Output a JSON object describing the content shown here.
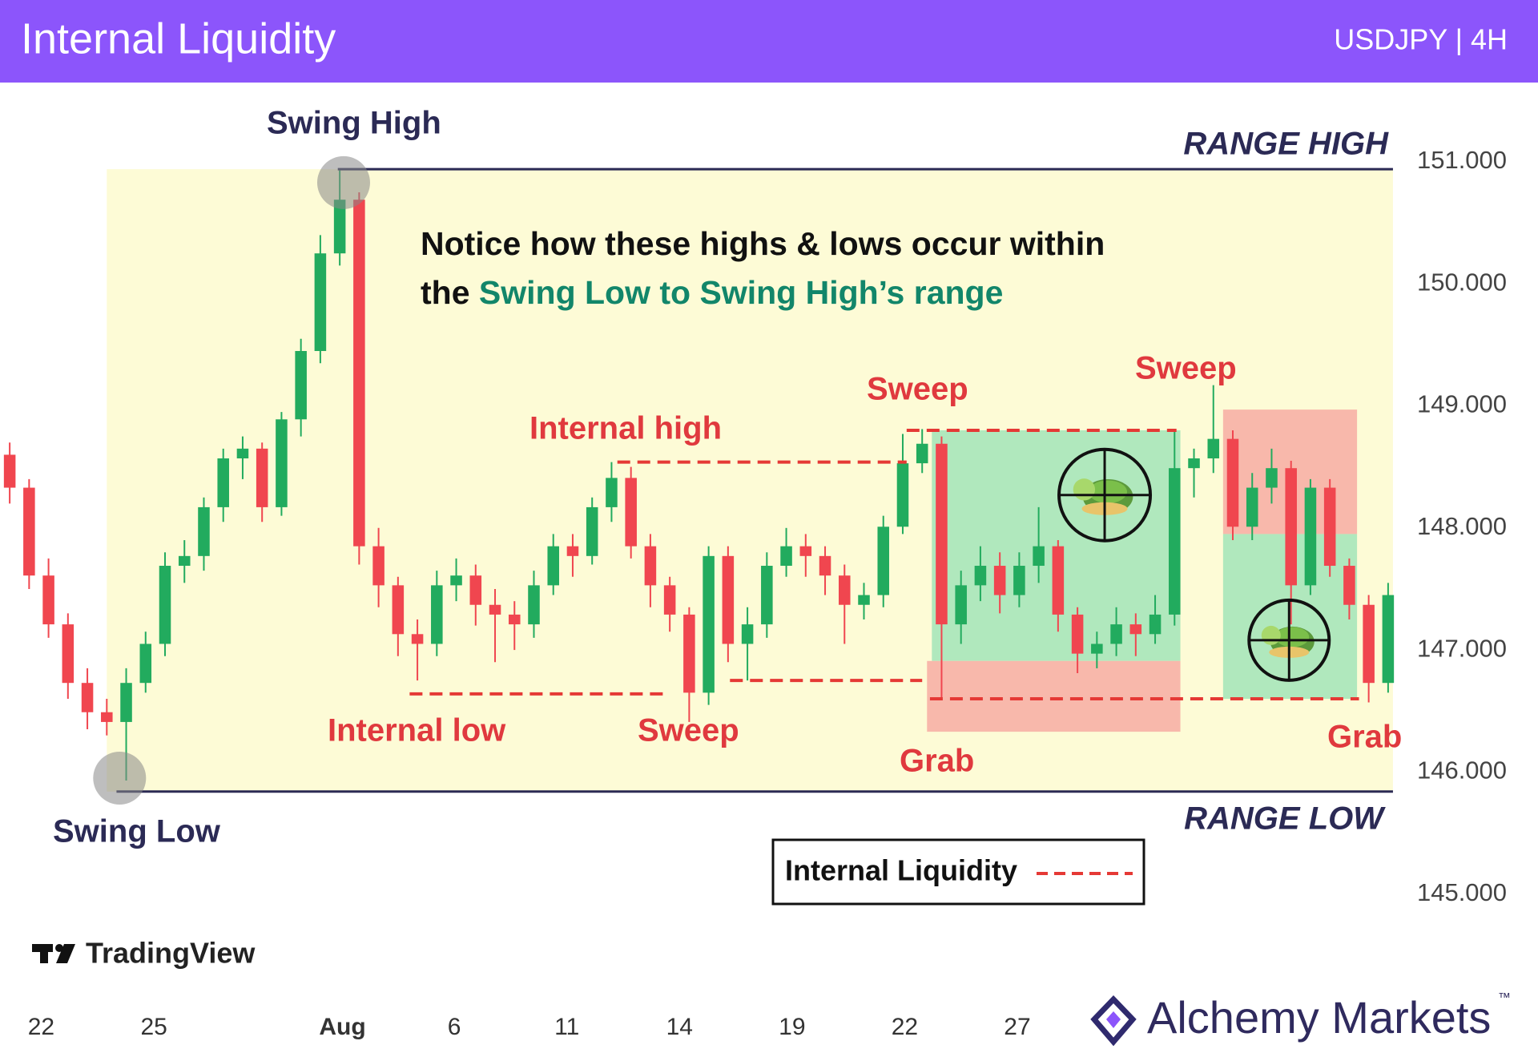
{
  "header": {
    "title": "Internal Liquidity",
    "subtitle": "USDJPY | 4H"
  },
  "chart_data": {
    "type": "candlestick",
    "x": [
      0,
      1,
      2,
      3,
      4,
      5,
      6,
      7,
      8,
      9,
      10,
      11,
      12,
      13,
      14,
      15,
      16,
      17,
      18,
      19,
      20,
      21,
      22,
      23,
      24,
      25,
      26,
      27,
      28,
      29,
      30,
      31,
      32,
      33,
      34,
      35,
      36,
      37,
      38,
      39,
      40,
      41,
      42,
      43,
      44,
      45,
      46,
      47,
      48,
      49,
      50,
      51,
      52,
      53,
      54,
      55,
      56,
      57,
      58,
      59,
      60,
      61,
      62,
      63,
      64,
      65,
      66,
      67,
      68,
      69,
      70,
      71
    ],
    "open": [
      148.6,
      148.33,
      147.61,
      147.21,
      146.73,
      146.49,
      146.41,
      146.73,
      147.05,
      147.69,
      147.77,
      148.17,
      148.57,
      148.65,
      148.17,
      148.89,
      149.45,
      150.25,
      150.69,
      147.85,
      147.53,
      147.13,
      147.05,
      147.53,
      147.61,
      147.37,
      147.29,
      147.21,
      147.53,
      147.85,
      147.77,
      148.17,
      148.41,
      147.85,
      147.53,
      147.29,
      146.65,
      147.77,
      147.05,
      147.21,
      147.69,
      147.85,
      147.77,
      147.61,
      147.37,
      147.45,
      148.01,
      148.53,
      148.69,
      147.21,
      147.53,
      147.69,
      147.45,
      147.69,
      147.85,
      147.29,
      146.97,
      147.05,
      147.21,
      147.13,
      147.29,
      148.49,
      148.57,
      148.73,
      148.01,
      148.33,
      148.49,
      147.53,
      148.33,
      147.69,
      147.37,
      146.73
    ],
    "high": [
      148.7,
      148.4,
      147.75,
      147.3,
      146.85,
      146.6,
      146.85,
      147.15,
      147.8,
      147.9,
      148.25,
      148.65,
      148.75,
      148.7,
      148.95,
      149.55,
      150.4,
      150.93,
      150.75,
      148.0,
      147.6,
      147.25,
      147.65,
      147.75,
      147.7,
      147.5,
      147.4,
      147.65,
      147.95,
      147.95,
      148.25,
      148.54,
      148.5,
      147.95,
      147.6,
      147.35,
      147.85,
      147.85,
      147.35,
      147.8,
      148.0,
      147.95,
      147.85,
      147.7,
      147.55,
      148.1,
      148.77,
      148.81,
      148.75,
      147.65,
      147.85,
      147.8,
      147.8,
      148.17,
      147.9,
      147.35,
      147.15,
      147.35,
      147.3,
      147.45,
      148.81,
      148.65,
      149.17,
      148.8,
      148.45,
      148.65,
      148.55,
      148.4,
      148.4,
      147.75,
      147.45,
      147.55
    ],
    "low": [
      148.2,
      147.5,
      147.1,
      146.6,
      146.35,
      146.3,
      145.93,
      146.65,
      146.95,
      147.55,
      147.65,
      148.05,
      148.4,
      148.05,
      148.1,
      148.75,
      149.35,
      150.15,
      147.7,
      147.35,
      146.95,
      146.75,
      146.95,
      147.4,
      147.2,
      146.9,
      147.0,
      147.1,
      147.45,
      147.6,
      147.7,
      148.05,
      147.75,
      147.35,
      147.15,
      146.41,
      146.55,
      146.9,
      146.75,
      147.1,
      147.6,
      147.6,
      147.45,
      147.05,
      147.25,
      147.35,
      147.95,
      148.45,
      146.6,
      147.05,
      147.4,
      147.3,
      147.35,
      147.55,
      147.15,
      146.81,
      146.85,
      146.95,
      146.95,
      147.05,
      147.2,
      148.25,
      148.45,
      147.9,
      147.9,
      148.2,
      147.21,
      147.45,
      147.6,
      147.25,
      146.57,
      146.65
    ],
    "close": [
      148.33,
      147.61,
      147.21,
      146.73,
      146.49,
      146.41,
      146.73,
      147.05,
      147.69,
      147.77,
      148.17,
      148.57,
      148.65,
      148.17,
      148.89,
      149.45,
      150.25,
      150.69,
      147.85,
      147.53,
      147.13,
      147.05,
      147.53,
      147.61,
      147.37,
      147.29,
      147.21,
      147.53,
      147.85,
      147.77,
      148.17,
      148.41,
      147.85,
      147.53,
      147.29,
      146.65,
      147.77,
      147.05,
      147.21,
      147.69,
      147.85,
      147.77,
      147.61,
      147.37,
      147.45,
      148.01,
      148.53,
      148.69,
      147.21,
      147.53,
      147.69,
      147.45,
      147.69,
      147.85,
      147.29,
      146.97,
      147.05,
      147.21,
      147.13,
      147.29,
      148.49,
      148.57,
      148.73,
      148.01,
      148.33,
      148.49,
      147.53,
      148.33,
      147.69,
      147.37,
      146.73,
      147.45
    ],
    "up_color": "#22ab5e",
    "down_color": "#f0464f",
    "xlim": [
      -0.5,
      71.5
    ],
    "ylim": [
      144.4,
      151.65
    ],
    "xticks": [
      {
        "value": 1.62,
        "label": "22"
      },
      {
        "value": 7.43,
        "label": "25"
      },
      {
        "value": 17.14,
        "label": "Aug"
      },
      {
        "value": 22.9,
        "label": "6"
      },
      {
        "value": 28.7,
        "label": "11"
      },
      {
        "value": 34.5,
        "label": "14"
      },
      {
        "value": 40.3,
        "label": "19"
      },
      {
        "value": 46.1,
        "label": "22"
      },
      {
        "value": 51.9,
        "label": "27"
      }
    ],
    "yticks": [
      {
        "value": 145,
        "label": "145.000"
      },
      {
        "value": 146,
        "label": "146.000"
      },
      {
        "value": 147,
        "label": "147.000"
      },
      {
        "value": 148,
        "label": "148.000"
      },
      {
        "value": 149,
        "label": "149.000"
      },
      {
        "value": 150,
        "label": "150.000"
      },
      {
        "value": 151,
        "label": "151.000"
      }
    ],
    "grid": false,
    "zones": [
      {
        "x": [
          5.0,
          71.25
        ],
        "y": [
          150.94,
          145.84
        ],
        "color": "#fdfbd6"
      },
      {
        "x": [
          47.5,
          60.3
        ],
        "y": [
          148.8,
          146.91
        ],
        "color": "#b0e8bd"
      },
      {
        "x": [
          47.25,
          60.3
        ],
        "y": [
          146.91,
          146.33
        ],
        "color": "#f8b8ab"
      },
      {
        "x": [
          62.5,
          69.4
        ],
        "y": [
          148.97,
          147.95
        ],
        "color": "#f8b8ab"
      },
      {
        "x": [
          62.5,
          69.4
        ],
        "y": [
          147.95,
          146.6
        ],
        "color": "#b0e8bd"
      }
    ],
    "levels": [
      {
        "y": 150.94,
        "x": [
          16.9,
          71.25
        ],
        "style": "solid",
        "color": "#2b2a55"
      },
      {
        "y": 145.84,
        "x": [
          5.5,
          71.25
        ],
        "style": "solid",
        "color": "#2b2a55"
      },
      {
        "y": 148.54,
        "x": [
          31.3,
          46.2
        ],
        "style": "dashed",
        "color": "#e53935"
      },
      {
        "y": 146.64,
        "x": [
          20.6,
          33.9
        ],
        "style": "dashed",
        "color": "#e53935"
      },
      {
        "y": 146.75,
        "x": [
          37.1,
          47.0
        ],
        "style": "dashed",
        "color": "#e53935"
      },
      {
        "y": 148.8,
        "x": [
          46.2,
          60.1
        ],
        "style": "dashed",
        "color": "#e53935"
      },
      {
        "y": 146.6,
        "x": [
          47.4,
          69.5
        ],
        "style": "dashed",
        "color": "#e53935"
      }
    ],
    "swing_points": [
      {
        "x": 17.2,
        "y": 150.83
      },
      {
        "x": 5.66,
        "y": 145.95
      }
    ],
    "targets": [
      {
        "x": 56.4,
        "y": 148.27
      },
      {
        "x": 65.9,
        "y": 147.08
      }
    ],
    "annotations": [
      {
        "text": "Swing High",
        "color": "#2b2a55"
      },
      {
        "text": "RANGE HIGH",
        "color": "#2b2a55"
      },
      {
        "text": "RANGE LOW",
        "color": "#2b2a55"
      },
      {
        "text": "Swing Low",
        "color": "#2b2a55"
      },
      {
        "text": "Internal high",
        "color": "#e0393e"
      },
      {
        "text": "Sweep",
        "color": "#e0393e"
      },
      {
        "text": "Sweep",
        "color": "#e0393e"
      },
      {
        "text": "Internal low",
        "color": "#e0393e"
      },
      {
        "text": "Sweep",
        "color": "#e0393e"
      },
      {
        "text": "Grab",
        "color": "#e0393e"
      },
      {
        "text": "Grab",
        "color": "#e0393e"
      }
    ],
    "notice": {
      "line1": "Notice how these highs & lows occur within",
      "line2_prefix": "the ",
      "line2_highlight": "Swing Low to Swing High’s range",
      "highlight_color": "#12866a"
    },
    "legend": {
      "label": "Internal Liquidity",
      "color": "#e53935"
    }
  },
  "branding": {
    "tradingview": "TradingView",
    "alchemy": "Alchemy Markets",
    "trademark": "™"
  }
}
